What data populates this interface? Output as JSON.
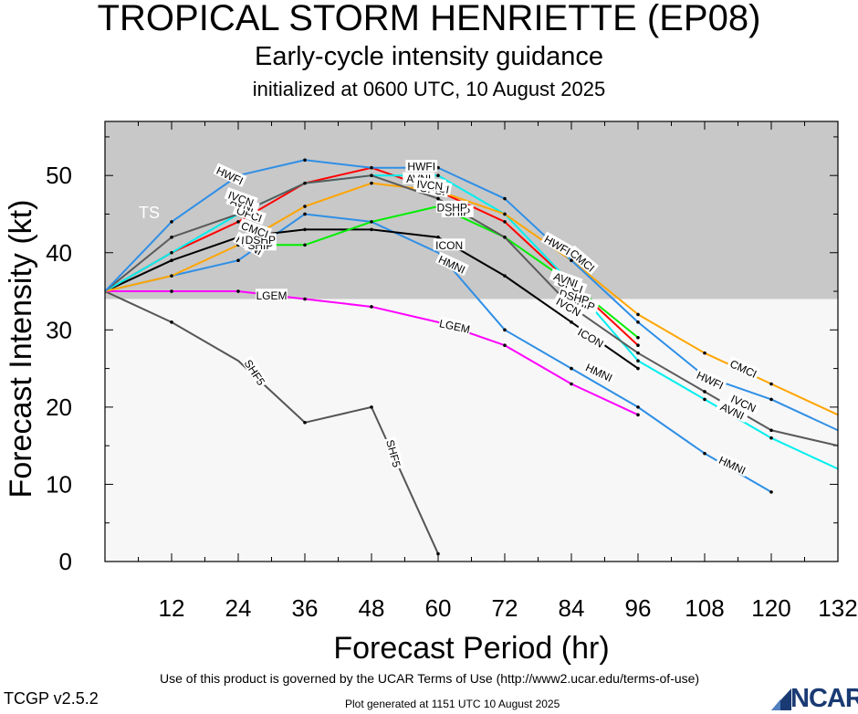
{
  "header": {
    "title": "TROPICAL STORM HENRIETTE (EP08)",
    "subtitle": "Early-cycle intensity guidance",
    "init": "initialized at 0600 UTC, 10 August 2025"
  },
  "footer": {
    "terms": "Use of this product is governed by the UCAR Terms of Use (http://www2.ucar.edu/terms-of-use)",
    "version": "TCGP v2.5.2",
    "generated": "Plot generated at 1151 UTC   10 August 2025",
    "logo": "NCAR"
  },
  "chart_data": {
    "type": "line",
    "xlabel": "Forecast Period (hr)",
    "ylabel": "Forecast Intensity (kt)",
    "xlim": [
      0,
      132
    ],
    "ylim": [
      0,
      57
    ],
    "xticks": [
      12,
      24,
      36,
      48,
      60,
      72,
      84,
      96,
      108,
      120,
      132
    ],
    "yticks": [
      0,
      10,
      20,
      30,
      40,
      50
    ],
    "bands": [
      {
        "label": "TS",
        "from": 34,
        "to": 57,
        "color": "#c8c8c8"
      },
      {
        "label": "",
        "from": 0,
        "to": 34,
        "color": "#f7f7f7"
      }
    ],
    "series": [
      {
        "name": "SHF5",
        "color": "#555555",
        "x": [
          0,
          12,
          24,
          36,
          48,
          60
        ],
        "y": [
          35,
          31,
          26,
          18,
          20,
          1
        ],
        "labels": [
          {
            "x": 27,
            "y": 24.5,
            "angle": 57
          },
          {
            "x": 52,
            "y": 14,
            "angle": 75
          }
        ]
      },
      {
        "name": "LGEM",
        "color": "#ff00ff",
        "x": [
          0,
          12,
          24,
          36,
          48,
          60,
          72,
          84,
          96
        ],
        "y": [
          35,
          35,
          35,
          34,
          33,
          31,
          28,
          23,
          19
        ],
        "labels": [
          {
            "x": 30,
            "y": 34.5,
            "angle": 0
          },
          {
            "x": 63,
            "y": 30.5,
            "angle": 12
          }
        ]
      },
      {
        "name": "HMNI",
        "color": "#2f8fe6",
        "x": [
          0,
          12,
          24,
          36,
          48,
          60,
          72,
          84,
          96,
          108,
          120
        ],
        "y": [
          35,
          37,
          39,
          45,
          44,
          40,
          30,
          25,
          20,
          14,
          9
        ],
        "labels": [
          {
            "x": 26,
            "y": 41,
            "angle": 30
          },
          {
            "x": 62.5,
            "y": 38.5,
            "angle": 25
          },
          {
            "x": 89,
            "y": 24.5,
            "angle": 25
          },
          {
            "x": 113,
            "y": 12.5,
            "angle": 25
          }
        ]
      },
      {
        "name": "ICON",
        "color": "#000000",
        "x": [
          0,
          12,
          24,
          36,
          48,
          60,
          72,
          84,
          96
        ],
        "y": [
          35,
          39,
          42,
          43,
          43,
          42,
          37,
          31,
          25
        ],
        "labels": [
          {
            "x": 27,
            "y": 41.5,
            "angle": 5
          },
          {
            "x": 62,
            "y": 41,
            "angle": 0
          },
          {
            "x": 87.5,
            "y": 29,
            "angle": 30
          }
        ]
      },
      {
        "name": "SHIP",
        "color": "#00ee00",
        "x": [
          24,
          36,
          48,
          60,
          72,
          84,
          96
        ],
        "y": [
          41,
          41,
          44,
          46,
          42,
          36,
          29
        ],
        "labels": [
          {
            "x": 28,
            "y": 41,
            "angle": 0
          },
          {
            "x": 63.5,
            "y": 45.3,
            "angle": 0
          },
          {
            "x": 86,
            "y": 33.5,
            "angle": 20
          }
        ]
      },
      {
        "name": "DSHP",
        "color": "#00bb00",
        "x": [],
        "y": [],
        "labels": [
          {
            "x": 28,
            "y": 41.7,
            "angle": 0
          },
          {
            "x": 62.5,
            "y": 45.9,
            "angle": 0
          },
          {
            "x": 84.5,
            "y": 34.3,
            "angle": 15
          }
        ]
      },
      {
        "name": "OFCI",
        "color": "#ff0000",
        "x": [
          0,
          12,
          24,
          36,
          48,
          60,
          72,
          84,
          96
        ],
        "y": [
          35,
          40,
          44,
          49,
          51,
          48,
          44,
          36,
          28
        ],
        "labels": [
          {
            "x": 26,
            "y": 45,
            "angle": 20
          },
          {
            "x": 59,
            "y": 48.2,
            "angle": 10
          },
          {
            "x": 83.8,
            "y": 35.8,
            "angle": 20
          }
        ]
      },
      {
        "name": "AVNI",
        "color": "#00eeee",
        "x": [
          0,
          12,
          24,
          36,
          48,
          60,
          72,
          84,
          96,
          108,
          120,
          132
        ],
        "y": [
          35,
          40,
          45,
          49,
          50,
          50,
          45,
          36,
          26,
          21,
          16,
          12
        ],
        "labels": [
          {
            "x": 24.8,
            "y": 46.3,
            "angle": 20
          },
          {
            "x": 56.5,
            "y": 49.6,
            "angle": 0
          },
          {
            "x": 83,
            "y": 36.5,
            "angle": 20
          },
          {
            "x": 113,
            "y": 19.5,
            "angle": 25
          }
        ]
      },
      {
        "name": "CMCI",
        "color": "#ffa500",
        "x": [
          0,
          12,
          24,
          36,
          48,
          60,
          72,
          84,
          96,
          108,
          120,
          132
        ],
        "y": [
          35,
          37,
          41,
          46,
          49,
          48,
          45,
          39,
          32,
          27,
          23,
          19
        ],
        "labels": [
          {
            "x": 27,
            "y": 43,
            "angle": 20
          },
          {
            "x": 59.5,
            "y": 48.5,
            "angle": 10
          },
          {
            "x": 86,
            "y": 39,
            "angle": 40
          },
          {
            "x": 115,
            "y": 25,
            "angle": 25
          }
        ]
      },
      {
        "name": "IVCN",
        "color": "#5a5a5a",
        "x": [
          0,
          12,
          24,
          36,
          48,
          60,
          72,
          84,
          96,
          108,
          120,
          132
        ],
        "y": [
          35,
          42,
          45,
          49,
          50,
          47,
          42,
          33,
          27,
          22,
          17,
          15
        ],
        "labels": [
          {
            "x": 24.5,
            "y": 47,
            "angle": 20
          },
          {
            "x": 58.5,
            "y": 48.8,
            "angle": 5
          },
          {
            "x": 83.5,
            "y": 33,
            "angle": 30
          },
          {
            "x": 115,
            "y": 20.5,
            "angle": 25
          }
        ]
      },
      {
        "name": "HWFI",
        "color": "#2f8fe6",
        "x": [
          0,
          12,
          24,
          36,
          48,
          60,
          72,
          84,
          96,
          108,
          120,
          132
        ],
        "y": [
          35,
          44,
          50,
          52,
          51,
          51,
          47,
          39,
          31,
          24,
          21,
          17
        ],
        "labels": [
          {
            "x": 22.5,
            "y": 50,
            "angle": 25
          },
          {
            "x": 57,
            "y": 51.2,
            "angle": 0
          },
          {
            "x": 81.5,
            "y": 41,
            "angle": 30
          },
          {
            "x": 109,
            "y": 23.5,
            "angle": 25
          }
        ]
      }
    ],
    "markers": [
      [
        12,
        44
      ],
      [
        12,
        42
      ],
      [
        12,
        40
      ],
      [
        12,
        39
      ],
      [
        12,
        37
      ],
      [
        12,
        35
      ],
      [
        12,
        31
      ],
      [
        24,
        45
      ],
      [
        24,
        44
      ],
      [
        24,
        42
      ],
      [
        24,
        41
      ],
      [
        24,
        39
      ],
      [
        24,
        35
      ],
      [
        36,
        52
      ],
      [
        36,
        49
      ],
      [
        36,
        46
      ],
      [
        36,
        45
      ],
      [
        36,
        43
      ],
      [
        36,
        41
      ],
      [
        36,
        34
      ],
      [
        36,
        18
      ],
      [
        48,
        51
      ],
      [
        48,
        50
      ],
      [
        48,
        49
      ],
      [
        48,
        44
      ],
      [
        48,
        43
      ],
      [
        48,
        33
      ],
      [
        48,
        20
      ],
      [
        60,
        51
      ],
      [
        60,
        50
      ],
      [
        60,
        49
      ],
      [
        60,
        48
      ],
      [
        60,
        47
      ],
      [
        60,
        42
      ],
      [
        60,
        1
      ],
      [
        72,
        47
      ],
      [
        72,
        45
      ],
      [
        72,
        44
      ],
      [
        72,
        42
      ],
      [
        72,
        37
      ],
      [
        72,
        30
      ],
      [
        72,
        28
      ],
      [
        84,
        39
      ],
      [
        84,
        36
      ],
      [
        84,
        33
      ],
      [
        84,
        31
      ],
      [
        84,
        25
      ],
      [
        84,
        23
      ],
      [
        96,
        32
      ],
      [
        96,
        31
      ],
      [
        96,
        29
      ],
      [
        96,
        28
      ],
      [
        96,
        27
      ],
      [
        96,
        26
      ],
      [
        96,
        25
      ],
      [
        96,
        20
      ],
      [
        96,
        19
      ],
      [
        108,
        27
      ],
      [
        108,
        24
      ],
      [
        108,
        22
      ],
      [
        108,
        21
      ],
      [
        108,
        14
      ],
      [
        120,
        23
      ],
      [
        120,
        21
      ],
      [
        120,
        17
      ],
      [
        120,
        16
      ],
      [
        120,
        9
      ]
    ]
  }
}
